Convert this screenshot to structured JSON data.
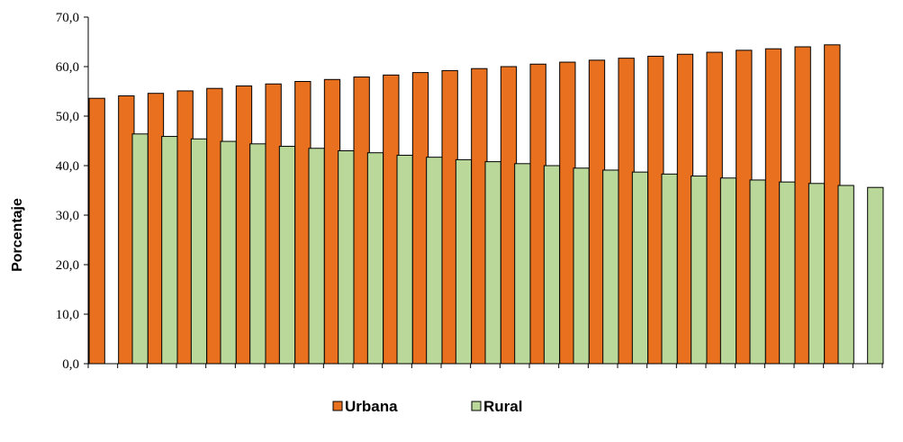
{
  "chart_data": {
    "type": "bar",
    "title": "",
    "xlabel": "",
    "ylabel": "Porcentaje",
    "ylim": [
      0,
      70
    ],
    "y_ticks": [
      "0,0",
      "10,0",
      "20,0",
      "30,0",
      "40,0",
      "50,0",
      "60,0",
      "70,0"
    ],
    "categories": [
      "",
      "",
      "",
      "",
      "",
      "",
      "",
      "",
      "",
      "",
      "",
      "",
      "",
      "",
      "",
      "",
      "",
      "",
      "",
      "",
      "",
      "",
      "",
      "",
      "",
      "",
      ""
    ],
    "series": [
      {
        "name": "Urbana",
        "color": "#E8701E",
        "values": [
          53.6,
          54.1,
          54.6,
          55.1,
          55.6,
          56.1,
          56.5,
          57.0,
          57.4,
          57.9,
          58.3,
          58.8,
          59.2,
          59.6,
          60.0,
          60.5,
          60.9,
          61.3,
          61.7,
          62.1,
          62.5,
          62.9,
          63.3,
          63.6,
          64.0,
          64.4,
          null
        ]
      },
      {
        "name": "Rural",
        "color": "#B9D89A",
        "values": [
          null,
          46.4,
          45.9,
          45.4,
          44.9,
          44.4,
          43.9,
          43.5,
          43.0,
          42.6,
          42.1,
          41.7,
          41.2,
          40.8,
          40.4,
          40.0,
          39.5,
          39.1,
          38.7,
          38.3,
          37.9,
          37.5,
          37.1,
          36.7,
          36.4,
          36.0,
          35.6
        ]
      }
    ],
    "grid": false,
    "legend_position": "bottom"
  }
}
